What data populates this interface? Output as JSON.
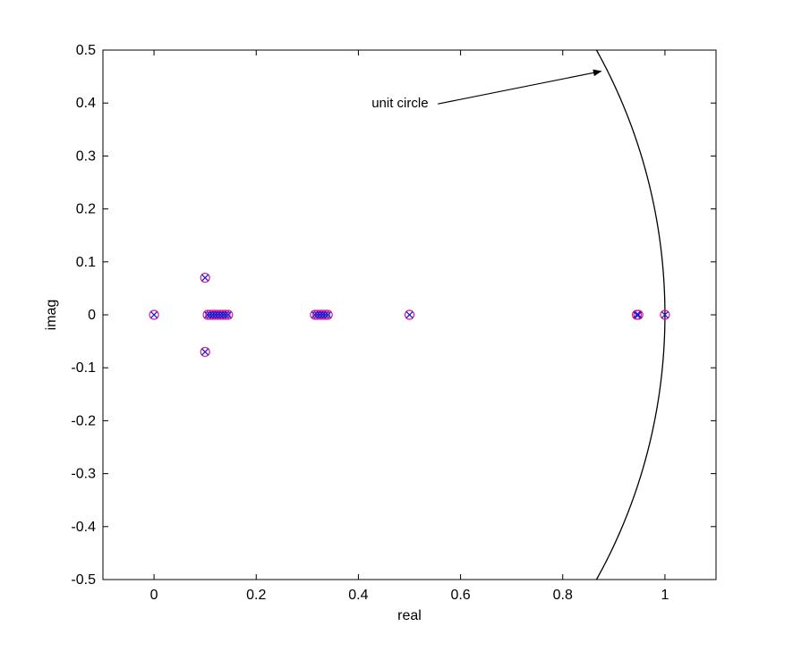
{
  "chart_data": {
    "type": "scatter",
    "title": "",
    "xlabel": "real",
    "ylabel": "imag",
    "xlim": [
      -0.1,
      1.1
    ],
    "ylim": [
      -0.5,
      0.5
    ],
    "xticks": [
      0,
      0.2,
      0.4,
      0.6,
      0.8,
      1
    ],
    "xtick_labels": [
      "0",
      "0.2",
      "0.4",
      "0.6",
      "0.8",
      "1"
    ],
    "yticks": [
      0.5,
      0.4,
      0.3,
      0.2,
      0.1,
      0,
      -0.1,
      -0.2,
      -0.3,
      -0.4,
      -0.5
    ],
    "ytick_labels": [
      "0.5",
      "0.4",
      "0.3",
      "0.2",
      "0.1",
      "0",
      "-0.1",
      "-0.2",
      "-0.3",
      "-0.4",
      "-0.5"
    ],
    "grid": false,
    "colors": {
      "zero_marker": "#e01a8a",
      "pole_marker": "#1a1ad6",
      "curve": "#000000"
    },
    "series": [
      {
        "marker": "circle",
        "x": [
          0.0,
          0.1,
          0.1,
          0.105,
          0.11,
          0.115,
          0.12,
          0.125,
          0.13,
          0.135,
          0.14,
          0.145,
          0.315,
          0.32,
          0.325,
          0.33,
          0.335,
          0.34,
          0.5,
          0.945,
          0.948,
          1.0
        ],
        "y": [
          0.0,
          0.07,
          -0.07,
          0,
          0,
          0,
          0,
          0,
          0,
          0,
          0,
          0,
          0,
          0,
          0,
          0,
          0,
          0,
          0,
          0,
          0,
          0
        ]
      },
      {
        "marker": "x",
        "x": [
          0.0,
          0.1,
          0.1,
          0.105,
          0.11,
          0.115,
          0.12,
          0.125,
          0.13,
          0.135,
          0.14,
          0.145,
          0.315,
          0.32,
          0.325,
          0.33,
          0.335,
          0.34,
          0.5,
          0.945,
          0.948,
          1.0
        ],
        "y": [
          0.0,
          0.07,
          -0.07,
          0,
          0,
          0,
          0,
          0,
          0,
          0,
          0,
          0,
          0,
          0,
          0,
          0,
          0,
          0,
          0,
          0,
          0,
          0
        ]
      }
    ],
    "curve": {
      "kind": "unit-circle",
      "radius": 1
    },
    "annotations": [
      {
        "text": "unit circle",
        "x": 0.51,
        "y": 0.4,
        "arrow_to": [
          0.875,
          0.46
        ]
      }
    ]
  }
}
